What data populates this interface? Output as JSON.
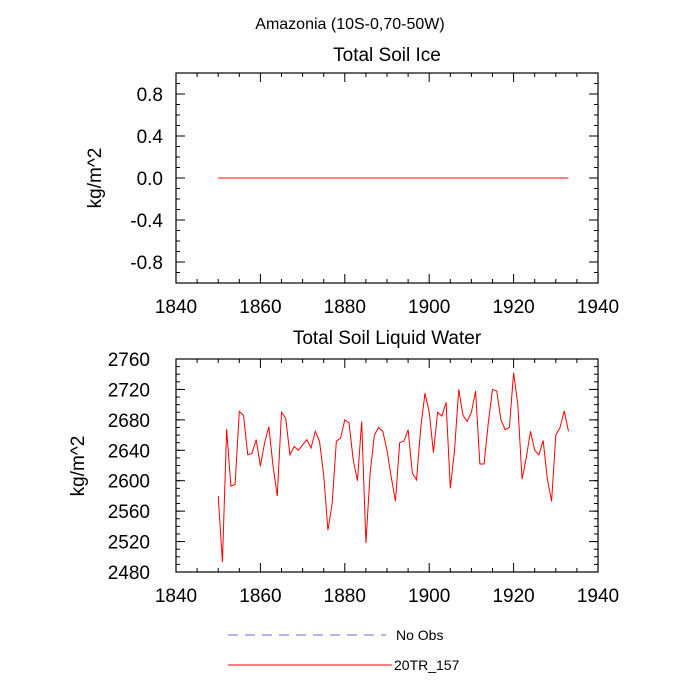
{
  "figure": {
    "title": "Amazonia (10S-0,70-50W)"
  },
  "chart_data": [
    {
      "type": "line",
      "title": "Total Soil Ice",
      "xlabel": "",
      "ylabel": "kg/m^2",
      "xlim": [
        1840,
        1940
      ],
      "ylim": [
        -1.0,
        1.0
      ],
      "xticks": [
        1840,
        1860,
        1880,
        1900,
        1920,
        1940
      ],
      "yticks": [
        -0.8,
        -0.4,
        0.0,
        0.4,
        0.8
      ],
      "ytick_labels": [
        "-0.8",
        "-0.4",
        "0.0",
        "0.4",
        "0.8"
      ],
      "series": [
        {
          "name": "20TR_157",
          "color": "#ff0000",
          "x": [
            1850,
            1933
          ],
          "values": [
            0.0,
            0.0
          ]
        }
      ]
    },
    {
      "type": "line",
      "title": "Total Soil Liquid Water",
      "xlabel": "",
      "ylabel": "kg/m^2",
      "xlim": [
        1840,
        1940
      ],
      "ylim": [
        2480,
        2760
      ],
      "xticks": [
        1840,
        1860,
        1880,
        1900,
        1920,
        1940
      ],
      "yticks": [
        2480,
        2520,
        2560,
        2600,
        2640,
        2680,
        2720,
        2760
      ],
      "ytick_labels": [
        "2480",
        "2520",
        "2560",
        "2600",
        "2640",
        "2680",
        "2720",
        "2760"
      ],
      "series": [
        {
          "name": "20TR_157",
          "color": "#ff0000",
          "x_start": 1850,
          "x_step": 1,
          "values": [
            2580,
            2493,
            2668,
            2593,
            2595,
            2691,
            2686,
            2634,
            2636,
            2654,
            2619,
            2650,
            2671,
            2619,
            2580,
            2690,
            2682,
            2634,
            2645,
            2640,
            2647,
            2654,
            2643,
            2665,
            2652,
            2607,
            2535,
            2570,
            2652,
            2656,
            2680,
            2676,
            2627,
            2600,
            2678,
            2518,
            2610,
            2660,
            2670,
            2665,
            2640,
            2605,
            2573,
            2650,
            2652,
            2667,
            2610,
            2601,
            2670,
            2715,
            2690,
            2637,
            2690,
            2685,
            2703,
            2590,
            2640,
            2720,
            2686,
            2678,
            2690,
            2718,
            2622,
            2622,
            2676,
            2720,
            2718,
            2680,
            2667,
            2670,
            2742,
            2700,
            2602,
            2630,
            2665,
            2640,
            2634,
            2653,
            2602,
            2573,
            2660,
            2670,
            2692,
            2665
          ]
        }
      ]
    }
  ],
  "legend": {
    "placement": "bottom-center",
    "entries": [
      {
        "label": "No Obs",
        "color": "#6b6bd6",
        "style": "dashed"
      },
      {
        "label": "20TR_157",
        "color": "#ff0000",
        "style": "solid"
      }
    ]
  }
}
